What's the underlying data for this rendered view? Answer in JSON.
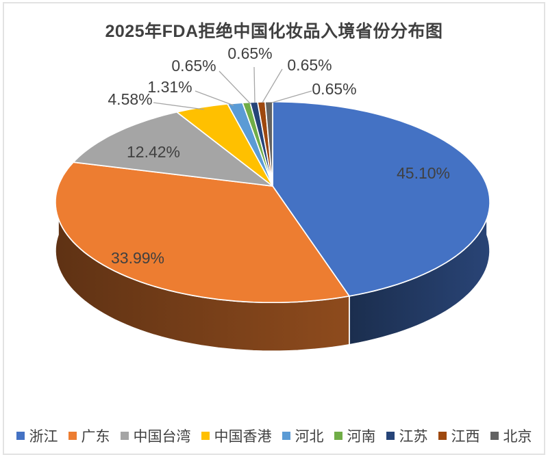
{
  "chart_data": {
    "type": "pie",
    "style": "3d",
    "title": "2025年FDA拒绝中国化妆品入境省份分布图",
    "legend_position": "bottom",
    "categories": [
      "浙江",
      "广东",
      "中国台湾",
      "中国香港",
      "河北",
      "河南",
      "江苏",
      "江西",
      "北京"
    ],
    "values": [
      45.1,
      33.99,
      12.42,
      4.58,
      1.31,
      0.65,
      0.65,
      0.65,
      0.65
    ],
    "labels": [
      "45.10%",
      "33.99%",
      "12.42%",
      "4.58%",
      "1.31%",
      "0.65%",
      "0.65%",
      "0.65%",
      "0.65%"
    ],
    "colors": [
      "#4472C4",
      "#ED7D31",
      "#A5A5A5",
      "#FFC000",
      "#5B9BD5",
      "#70AD47",
      "#264478",
      "#9E480E",
      "#636363"
    ],
    "title_color": "#404040",
    "label_color": "#404040",
    "leader_line_color": "#A6A6A6"
  }
}
